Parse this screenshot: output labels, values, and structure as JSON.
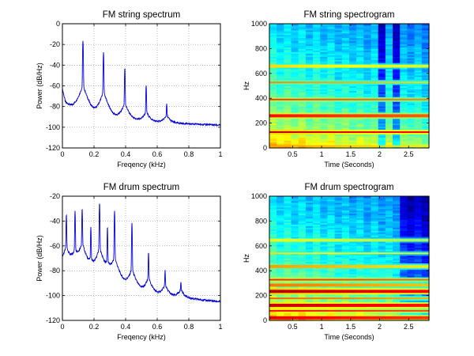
{
  "chart_data": [
    {
      "type": "line",
      "title": "FM string spectrum",
      "xlabel": "Freqency (kHz)",
      "ylabel": "Power (dB/Hz)",
      "xlim": [
        0,
        1
      ],
      "ylim": [
        -120,
        0
      ],
      "xticks": [
        "0",
        "0.2",
        "0.4",
        "0.6",
        "0.8",
        "1"
      ],
      "yticks": [
        "0",
        "-20",
        "-40",
        "-60",
        "-80",
        "-100",
        "-120"
      ],
      "grid": "on",
      "line_color": "#0000dd",
      "baseline": {
        "x": [
          0,
          0.02,
          0.06,
          0.1,
          0.2,
          0.3,
          0.5,
          0.7,
          1.0
        ],
        "y": [
          -63,
          -76,
          -80,
          -80,
          -86,
          -90,
          -94,
          -96,
          -98
        ]
      },
      "peaks": [
        {
          "x": 0.13,
          "y": -16,
          "skirt_top": -60
        },
        {
          "x": 0.26,
          "y": -28,
          "skirt_top": -66
        },
        {
          "x": 0.395,
          "y": -43,
          "skirt_top": -78
        },
        {
          "x": 0.53,
          "y": -60,
          "skirt_top": -88
        },
        {
          "x": 0.66,
          "y": -80,
          "skirt_top": -93
        }
      ]
    },
    {
      "type": "heatmap",
      "title": "FM string spectrogram",
      "xlabel": "Time (Seconds)",
      "ylabel": "Hz",
      "xlim": [
        0.1,
        2.85
      ],
      "ylim": [
        0,
        1000
      ],
      "xticks": [
        "0.5",
        "1",
        "1.5",
        "2",
        "2.5"
      ],
      "yticks": [
        "0",
        "200",
        "400",
        "600",
        "800",
        "1000"
      ],
      "colormap": [
        "#00007f",
        "#0000ff",
        "#007fff",
        "#00ffff",
        "#7fff7f",
        "#ffff00",
        "#ff7f00",
        "#ff0000",
        "#7f0000"
      ],
      "time_columns": 22,
      "dark_columns": [
        15,
        17
      ],
      "harmonics_hz": [
        20,
        130,
        265,
        395,
        530,
        660
      ],
      "harmonic_levels": [
        0.72,
        0.95,
        0.86,
        0.82,
        0.74,
        0.66
      ]
    },
    {
      "type": "line",
      "title": "FM drum spectrum",
      "xlabel": "Freqency (kHz)",
      "ylabel": "Power (dB/Hz)",
      "xlim": [
        0,
        1
      ],
      "ylim": [
        -120,
        -20
      ],
      "xticks": [
        "0",
        "0.2",
        "0.4",
        "0.6",
        "0.8",
        "1"
      ],
      "yticks": [
        "-20",
        "-40",
        "-60",
        "-80",
        "-100",
        "-120"
      ],
      "grid": "on",
      "line_color": "#0000dd",
      "baseline": {
        "x": [
          0,
          0.1,
          0.2,
          0.3,
          0.4,
          0.5,
          0.6,
          0.7,
          1.0
        ],
        "y": [
          -75,
          -80,
          -85,
          -86,
          -91,
          -96,
          -99,
          -101,
          -105
        ]
      },
      "peaks": [
        {
          "x": 0.025,
          "y": -35,
          "skirt_top": -62
        },
        {
          "x": 0.08,
          "y": -32,
          "skirt_top": -65
        },
        {
          "x": 0.125,
          "y": -30,
          "skirt_top": -58
        },
        {
          "x": 0.18,
          "y": -45,
          "skirt_top": -75
        },
        {
          "x": 0.235,
          "y": -25,
          "skirt_top": -62
        },
        {
          "x": 0.285,
          "y": -45,
          "skirt_top": -78
        },
        {
          "x": 0.33,
          "y": -32,
          "skirt_top": -70
        },
        {
          "x": 0.44,
          "y": -42,
          "skirt_top": -80
        },
        {
          "x": 0.545,
          "y": -65,
          "skirt_top": -88
        },
        {
          "x": 0.65,
          "y": -82,
          "skirt_top": -95
        },
        {
          "x": 0.75,
          "y": -95,
          "skirt_top": -100
        }
      ]
    },
    {
      "type": "heatmap",
      "title": "FM drum spectrogram",
      "xlabel": "Time (Seconds)",
      "ylabel": "Hz",
      "xlim": [
        0.1,
        2.85
      ],
      "ylim": [
        0,
        1000
      ],
      "xticks": [
        "0.5",
        "1",
        "1.5",
        "2",
        "2.5"
      ],
      "yticks": [
        "0",
        "200",
        "400",
        "600",
        "800",
        "1000"
      ],
      "colormap": [
        "#00007f",
        "#0000ff",
        "#007fff",
        "#00ffff",
        "#7fff7f",
        "#ffff00",
        "#ff7f00",
        "#ff0000",
        "#7f0000"
      ],
      "time_columns": 22,
      "dark_columns": [
        18,
        19,
        20,
        21
      ],
      "harmonics_hz": [
        25,
        80,
        125,
        180,
        235,
        285,
        330,
        440,
        545,
        650
      ],
      "harmonic_levels": [
        0.9,
        0.88,
        0.93,
        0.78,
        0.95,
        0.76,
        0.84,
        0.72,
        0.66,
        0.6
      ]
    }
  ]
}
